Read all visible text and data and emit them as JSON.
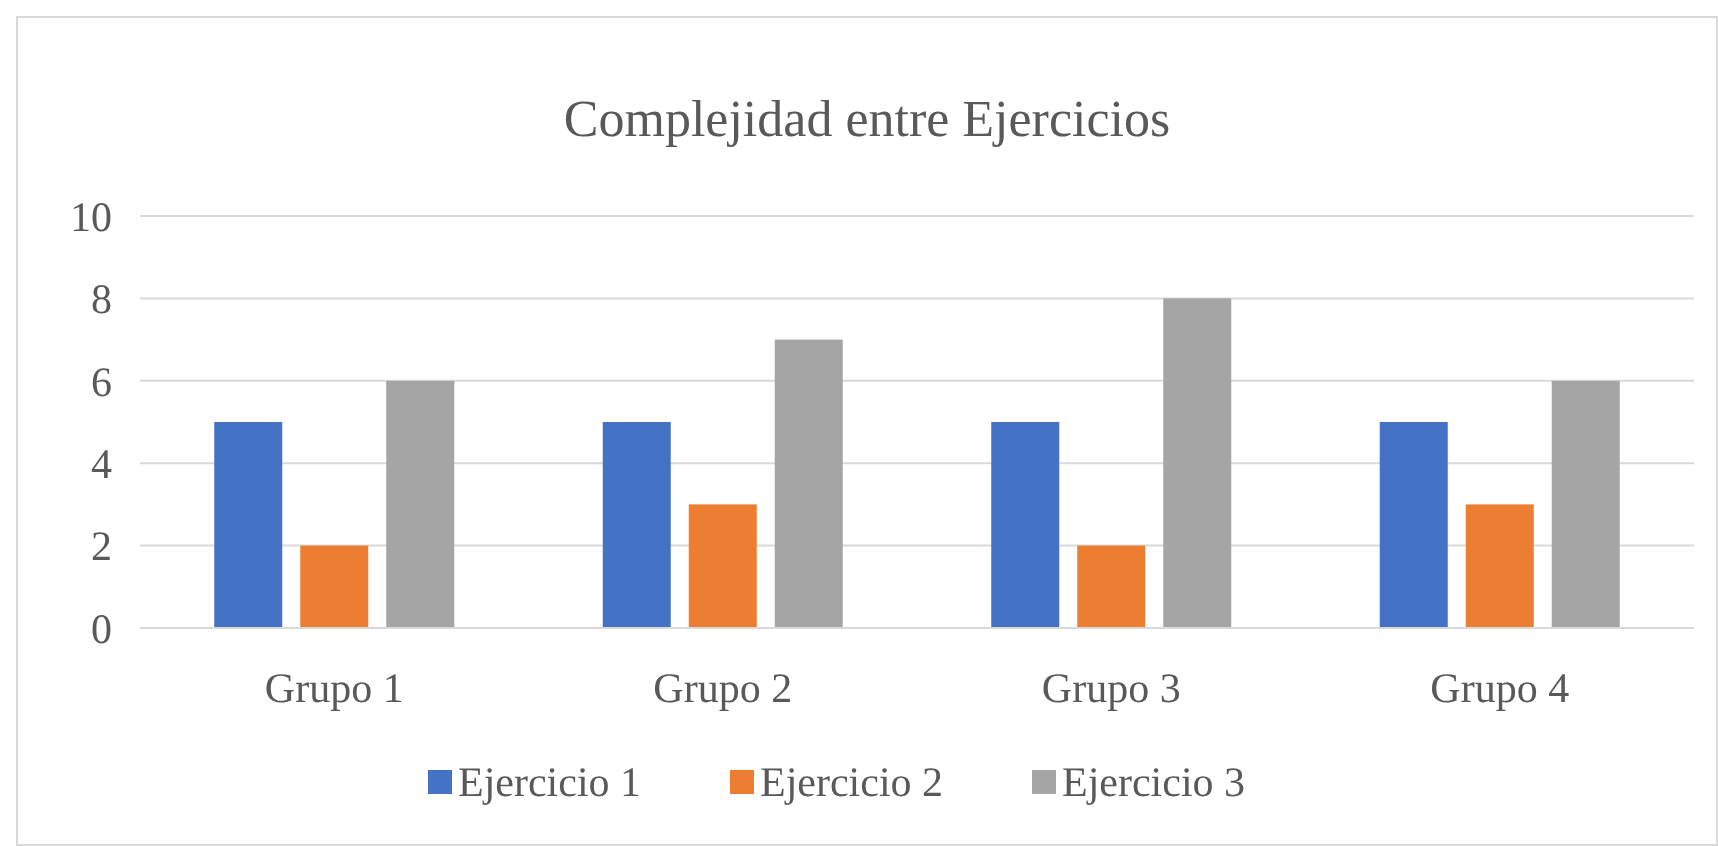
{
  "chart_data": {
    "type": "bar",
    "title": "Complejidad entre Ejercicios",
    "categories": [
      "Grupo 1",
      "Grupo 2",
      "Grupo 3",
      "Grupo 4"
    ],
    "series": [
      {
        "name": "Ejercicio 1",
        "color": "#4472c4",
        "values": [
          5,
          5,
          5,
          5
        ]
      },
      {
        "name": "Ejercicio 2",
        "color": "#ed7d31",
        "values": [
          2,
          3,
          2,
          3
        ]
      },
      {
        "name": "Ejercicio 3",
        "color": "#a5a5a5",
        "values": [
          6,
          7,
          8,
          6
        ]
      }
    ],
    "ylim": [
      0,
      10
    ],
    "yticks": [
      0,
      2,
      4,
      6,
      8,
      10
    ],
    "grid": "y",
    "legend": "bottom"
  }
}
